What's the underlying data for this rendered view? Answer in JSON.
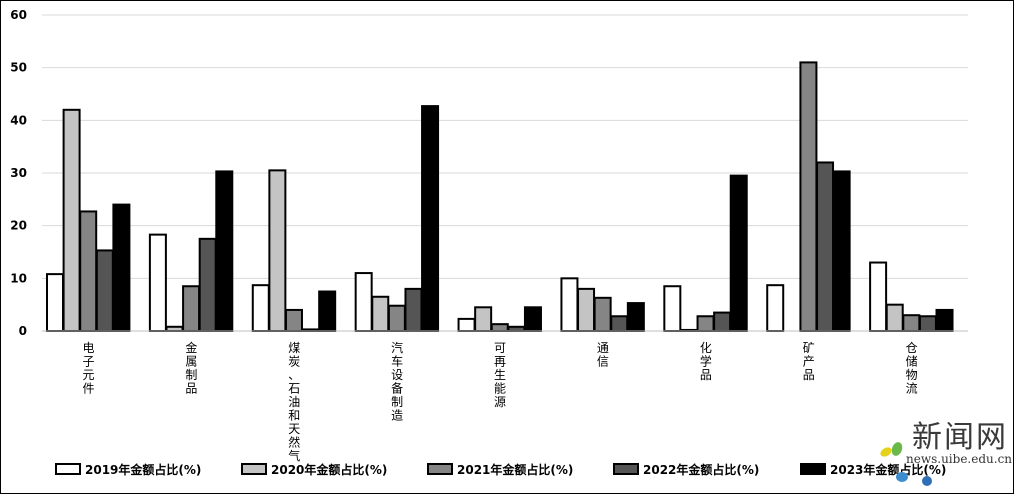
{
  "chart_data": {
    "type": "bar",
    "title": "",
    "xlabel": "",
    "ylabel": "",
    "ylim": [
      0,
      60
    ],
    "yticks": [
      0,
      10,
      20,
      30,
      40,
      50,
      60
    ],
    "grid": true,
    "legend_position": "bottom",
    "categories": [
      "电子元件",
      "金属制品",
      "煤炭、石油和天然气",
      "汽车设备制造",
      "可再生能源",
      "通信",
      "化学品",
      "矿产品",
      "仓储物流"
    ],
    "series": [
      {
        "name": "2019年金额占比(%)",
        "color": "#ffffff",
        "values": [
          10.8,
          18.3,
          8.7,
          11.0,
          2.3,
          10.0,
          8.5,
          8.7,
          13.0
        ]
      },
      {
        "name": "2020年金额占比(%)",
        "color": "#c4c4c4",
        "values": [
          42.0,
          0.8,
          30.5,
          6.5,
          4.5,
          8.0,
          0.2,
          0.0,
          5.0
        ]
      },
      {
        "name": "2021年金额占比(%)",
        "color": "#858585",
        "values": [
          22.7,
          8.5,
          4.0,
          4.8,
          1.3,
          6.3,
          2.8,
          51.0,
          3.0
        ]
      },
      {
        "name": "2022年金额占比(%)",
        "color": "#555555",
        "values": [
          15.3,
          17.5,
          0.3,
          8.0,
          0.8,
          2.8,
          3.5,
          32.0,
          2.8
        ]
      },
      {
        "name": "2023年金额占比(%)",
        "color": "#000000",
        "values": [
          24.0,
          30.3,
          7.5,
          42.7,
          4.5,
          5.3,
          29.5,
          30.3,
          4.0
        ]
      }
    ]
  },
  "watermark": {
    "site_name": "新闻网",
    "url": "news.uibe.edu.cn"
  }
}
